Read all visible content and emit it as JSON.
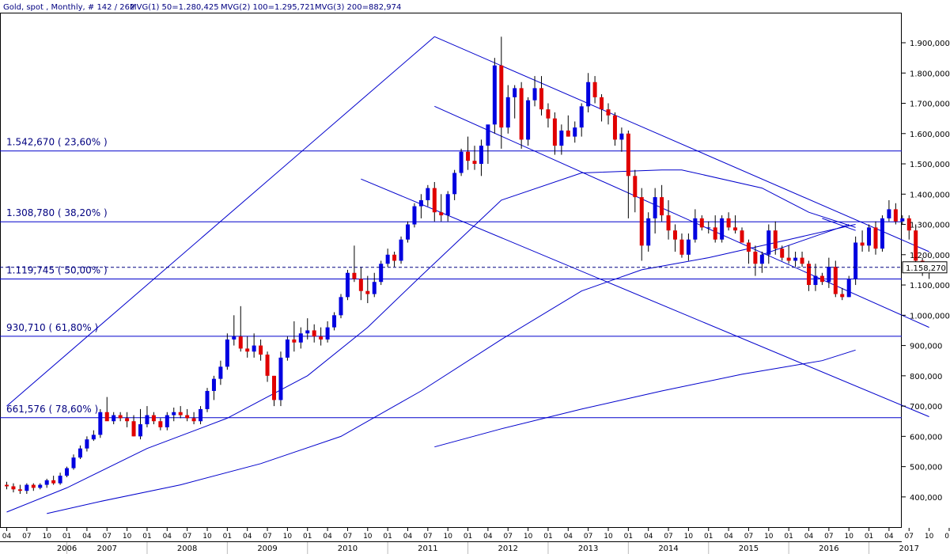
{
  "header": {
    "title": "Gold, spot , Monthly, # 142 / 262",
    "ma1": "MVG(1) 50=1.280,425",
    "ma2": "MVG(2) 100=1.295,721",
    "ma3": "MVG(3) 200=882,974"
  },
  "colors": {
    "background": "#ffffff",
    "line": "#0000cc",
    "up_candle": "#0000e0",
    "down_candle": "#e00000",
    "text": "#000080"
  },
  "chart_data": {
    "type": "candlestick",
    "x_range": [
      "2006-04",
      "2017-10"
    ],
    "ylim": [
      340,
      1960
    ],
    "y_ticks": [
      {
        "value": 400,
        "label": "400,000"
      },
      {
        "value": 500,
        "label": "500,000"
      },
      {
        "value": 600,
        "label": "600,000"
      },
      {
        "value": 700,
        "label": "700,000"
      },
      {
        "value": 800,
        "label": "800,000"
      },
      {
        "value": 900,
        "label": "900,000"
      },
      {
        "value": 1000,
        "label": "1.000,000"
      },
      {
        "value": 1100,
        "label": "1.100,000"
      },
      {
        "value": 1200,
        "label": "1.200,000"
      },
      {
        "value": 1300,
        "label": "1.300,000"
      },
      {
        "value": 1400,
        "label": "1.400,000"
      },
      {
        "value": 1500,
        "label": "1.500,000"
      },
      {
        "value": 1600,
        "label": "1.600,000"
      },
      {
        "value": 1700,
        "label": "1.700,000"
      },
      {
        "value": 1800,
        "label": "1.800,000"
      },
      {
        "value": 1900,
        "label": "1.900,000"
      }
    ],
    "x_month_labels": [
      "04",
      "07",
      "10",
      "01",
      "04",
      "07",
      "10",
      "01",
      "04",
      "07",
      "10",
      "01",
      "04",
      "07",
      "10",
      "01",
      "04",
      "07",
      "10",
      "01",
      "04",
      "07",
      "10",
      "01",
      "04",
      "07",
      "10",
      "01",
      "04",
      "07",
      "10",
      "01",
      "04",
      "07",
      "10",
      "01",
      "04",
      "07",
      "10",
      "01",
      "04",
      "07",
      "10",
      "01",
      "04",
      "07",
      "10",
      "01",
      "04",
      "07",
      "10"
    ],
    "x_years": [
      "2006",
      "2007",
      "2008",
      "2009",
      "2010",
      "2011",
      "2012",
      "2013",
      "2014",
      "2015",
      "2016",
      "2017"
    ],
    "first_month": "2006-04",
    "fib_levels": [
      {
        "value": 1542.67,
        "label": "1.542,670  ( 23,60% )"
      },
      {
        "value": 1308.78,
        "label": "1.308,780  ( 38,20% )"
      },
      {
        "value": 1119.745,
        "label": "1.119,745  ( 50,00% )"
      },
      {
        "value": 930.71,
        "label": "930,710  ( 61,80% )"
      },
      {
        "value": 661.576,
        "label": "661,576  ( 78,60% )"
      }
    ],
    "last_price": {
      "value": 1158.27,
      "label": "1.158,270"
    },
    "trendlines": [
      {
        "from": [
          "2006-04",
          700
        ],
        "to": [
          "2011-08",
          1920
        ]
      },
      {
        "from": [
          "2011-08",
          1920
        ],
        "to": [
          "2017-10",
          1210
        ]
      },
      {
        "from": [
          "2011-08",
          1690
        ],
        "to": [
          "2017-10",
          960
        ]
      },
      {
        "from": [
          "2010-09",
          1450
        ],
        "to": [
          "2017-10",
          665
        ]
      },
      {
        "from": [
          "2015-09",
          1200
        ],
        "to": [
          "2016-10",
          1300
        ]
      },
      {
        "from": [
          "2016-06",
          1320
        ],
        "to": [
          "2016-11",
          1280
        ]
      }
    ],
    "moving_averages": [
      {
        "name": "MVG(1) 50",
        "points": [
          [
            "2006-04",
            350
          ],
          [
            "2007-01",
            430
          ],
          [
            "2008-01",
            560
          ],
          [
            "2009-01",
            660
          ],
          [
            "2010-01",
            800
          ],
          [
            "2010-10",
            960
          ],
          [
            "2011-06",
            1130
          ],
          [
            "2012-06",
            1380
          ],
          [
            "2013-06",
            1470
          ],
          [
            "2014-06",
            1480
          ],
          [
            "2014-09",
            1480
          ],
          [
            "2015-09",
            1420
          ],
          [
            "2016-04",
            1340
          ],
          [
            "2016-11",
            1290
          ]
        ]
      },
      {
        "name": "MVG(2) 100",
        "points": [
          [
            "2006-10",
            345
          ],
          [
            "2007-06",
            385
          ],
          [
            "2008-06",
            440
          ],
          [
            "2009-06",
            510
          ],
          [
            "2010-06",
            600
          ],
          [
            "2011-06",
            750
          ],
          [
            "2012-06",
            920
          ],
          [
            "2013-06",
            1080
          ],
          [
            "2014-03",
            1150
          ],
          [
            "2015-01",
            1190
          ],
          [
            "2016-01",
            1250
          ],
          [
            "2016-11",
            1300
          ]
        ]
      },
      {
        "name": "MVG(3) 200",
        "points": [
          [
            "2011-08",
            565
          ],
          [
            "2012-06",
            625
          ],
          [
            "2013-06",
            690
          ],
          [
            "2014-06",
            750
          ],
          [
            "2015-06",
            805
          ],
          [
            "2016-06",
            850
          ],
          [
            "2016-11",
            885
          ]
        ]
      }
    ],
    "ohlc": [
      [
        440,
        450,
        425,
        435
      ],
      [
        435,
        445,
        415,
        425
      ],
      [
        425,
        440,
        410,
        420
      ],
      [
        420,
        445,
        410,
        440
      ],
      [
        440,
        445,
        420,
        430
      ],
      [
        430,
        445,
        425,
        440
      ],
      [
        440,
        460,
        430,
        455
      ],
      [
        455,
        470,
        440,
        445
      ],
      [
        445,
        480,
        440,
        470
      ],
      [
        470,
        500,
        465,
        495
      ],
      [
        495,
        540,
        490,
        530
      ],
      [
        530,
        570,
        525,
        560
      ],
      [
        560,
        600,
        550,
        590
      ],
      [
        590,
        620,
        585,
        605
      ],
      [
        605,
        690,
        595,
        680
      ],
      [
        680,
        730,
        660,
        650
      ],
      [
        650,
        680,
        640,
        670
      ],
      [
        670,
        680,
        650,
        660
      ],
      [
        660,
        680,
        630,
        650
      ],
      [
        650,
        670,
        600,
        600
      ],
      [
        600,
        690,
        590,
        640
      ],
      [
        640,
        700,
        630,
        670
      ],
      [
        670,
        680,
        640,
        650
      ],
      [
        650,
        660,
        620,
        630
      ],
      [
        630,
        680,
        620,
        670
      ],
      [
        670,
        695,
        650,
        680
      ],
      [
        680,
        700,
        660,
        670
      ],
      [
        670,
        690,
        650,
        660
      ],
      [
        660,
        680,
        640,
        650
      ],
      [
        650,
        700,
        640,
        690
      ],
      [
        690,
        760,
        680,
        750
      ],
      [
        750,
        800,
        720,
        790
      ],
      [
        790,
        850,
        770,
        830
      ],
      [
        830,
        940,
        820,
        920
      ],
      [
        920,
        1000,
        900,
        930
      ],
      [
        930,
        1030,
        880,
        890
      ],
      [
        890,
        930,
        860,
        880
      ],
      [
        880,
        940,
        860,
        900
      ],
      [
        900,
        920,
        850,
        870
      ],
      [
        870,
        880,
        780,
        800
      ],
      [
        800,
        800,
        700,
        720
      ],
      [
        720,
        880,
        700,
        860
      ],
      [
        860,
        930,
        850,
        920
      ],
      [
        920,
        980,
        880,
        910
      ],
      [
        910,
        960,
        890,
        940
      ],
      [
        940,
        990,
        920,
        950
      ],
      [
        950,
        970,
        910,
        930
      ],
      [
        930,
        960,
        900,
        920
      ],
      [
        920,
        980,
        910,
        960
      ],
      [
        960,
        1010,
        950,
        1000
      ],
      [
        1000,
        1070,
        990,
        1060
      ],
      [
        1060,
        1150,
        1050,
        1140
      ],
      [
        1140,
        1230,
        1110,
        1120
      ],
      [
        1120,
        1160,
        1050,
        1080
      ],
      [
        1080,
        1130,
        1040,
        1070
      ],
      [
        1070,
        1140,
        1060,
        1110
      ],
      [
        1110,
        1180,
        1100,
        1170
      ],
      [
        1170,
        1220,
        1160,
        1200
      ],
      [
        1200,
        1210,
        1160,
        1180
      ],
      [
        1180,
        1260,
        1170,
        1250
      ],
      [
        1250,
        1310,
        1240,
        1300
      ],
      [
        1300,
        1370,
        1290,
        1360
      ],
      [
        1360,
        1400,
        1320,
        1380
      ],
      [
        1380,
        1430,
        1360,
        1420
      ],
      [
        1420,
        1440,
        1310,
        1340
      ],
      [
        1340,
        1400,
        1310,
        1330
      ],
      [
        1330,
        1410,
        1310,
        1400
      ],
      [
        1400,
        1480,
        1380,
        1470
      ],
      [
        1470,
        1550,
        1460,
        1540
      ],
      [
        1540,
        1590,
        1480,
        1510
      ],
      [
        1510,
        1560,
        1480,
        1500
      ],
      [
        1500,
        1580,
        1460,
        1560
      ],
      [
        1560,
        1620,
        1500,
        1630
      ],
      [
        1630,
        1850,
        1600,
        1825
      ],
      [
        1825,
        1920,
        1550,
        1620
      ],
      [
        1620,
        1760,
        1600,
        1720
      ],
      [
        1720,
        1760,
        1650,
        1750
      ],
      [
        1750,
        1770,
        1550,
        1580
      ],
      [
        1580,
        1720,
        1560,
        1710
      ],
      [
        1710,
        1790,
        1690,
        1750
      ],
      [
        1750,
        1790,
        1660,
        1680
      ],
      [
        1680,
        1700,
        1620,
        1650
      ],
      [
        1650,
        1670,
        1530,
        1560
      ],
      [
        1560,
        1630,
        1530,
        1610
      ],
      [
        1610,
        1660,
        1590,
        1590
      ],
      [
        1590,
        1640,
        1570,
        1620
      ],
      [
        1620,
        1700,
        1590,
        1690
      ],
      [
        1690,
        1800,
        1670,
        1770
      ],
      [
        1770,
        1790,
        1700,
        1720
      ],
      [
        1720,
        1730,
        1640,
        1680
      ],
      [
        1680,
        1700,
        1630,
        1660
      ],
      [
        1660,
        1670,
        1560,
        1580
      ],
      [
        1580,
        1620,
        1540,
        1600
      ],
      [
        1600,
        1610,
        1320,
        1460
      ],
      [
        1460,
        1480,
        1340,
        1390
      ],
      [
        1390,
        1420,
        1180,
        1230
      ],
      [
        1230,
        1340,
        1210,
        1320
      ],
      [
        1320,
        1420,
        1270,
        1390
      ],
      [
        1390,
        1430,
        1310,
        1330
      ],
      [
        1330,
        1380,
        1250,
        1280
      ],
      [
        1280,
        1300,
        1210,
        1250
      ],
      [
        1250,
        1270,
        1190,
        1200
      ],
      [
        1200,
        1270,
        1180,
        1250
      ],
      [
        1250,
        1350,
        1240,
        1320
      ],
      [
        1320,
        1330,
        1280,
        1290
      ],
      [
        1290,
        1310,
        1270,
        1290
      ],
      [
        1290,
        1330,
        1240,
        1250
      ],
      [
        1250,
        1330,
        1240,
        1320
      ],
      [
        1320,
        1340,
        1280,
        1290
      ],
      [
        1290,
        1330,
        1270,
        1280
      ],
      [
        1280,
        1290,
        1240,
        1240
      ],
      [
        1240,
        1250,
        1170,
        1210
      ],
      [
        1210,
        1230,
        1130,
        1170
      ],
      [
        1170,
        1210,
        1140,
        1200
      ],
      [
        1200,
        1300,
        1170,
        1280
      ],
      [
        1280,
        1310,
        1200,
        1220
      ],
      [
        1220,
        1230,
        1180,
        1190
      ],
      [
        1190,
        1230,
        1170,
        1180
      ],
      [
        1180,
        1210,
        1160,
        1190
      ],
      [
        1190,
        1210,
        1160,
        1170
      ],
      [
        1170,
        1180,
        1080,
        1100
      ],
      [
        1100,
        1170,
        1080,
        1130
      ],
      [
        1130,
        1140,
        1100,
        1110
      ],
      [
        1110,
        1190,
        1090,
        1160
      ],
      [
        1160,
        1180,
        1060,
        1070
      ],
      [
        1070,
        1090,
        1050,
        1060
      ],
      [
        1060,
        1130,
        1060,
        1120
      ],
      [
        1120,
        1260,
        1100,
        1240
      ],
      [
        1240,
        1280,
        1210,
        1230
      ],
      [
        1230,
        1300,
        1210,
        1290
      ],
      [
        1290,
        1310,
        1200,
        1220
      ],
      [
        1220,
        1330,
        1210,
        1320
      ],
      [
        1320,
        1380,
        1310,
        1350
      ],
      [
        1350,
        1370,
        1300,
        1310
      ],
      [
        1310,
        1330,
        1300,
        1320
      ],
      [
        1320,
        1330,
        1250,
        1280
      ],
      [
        1280,
        1300,
        1160,
        1180
      ],
      [
        1180,
        1190,
        1130,
        1150
      ],
      [
        1150,
        1170,
        1120,
        1158
      ]
    ]
  }
}
